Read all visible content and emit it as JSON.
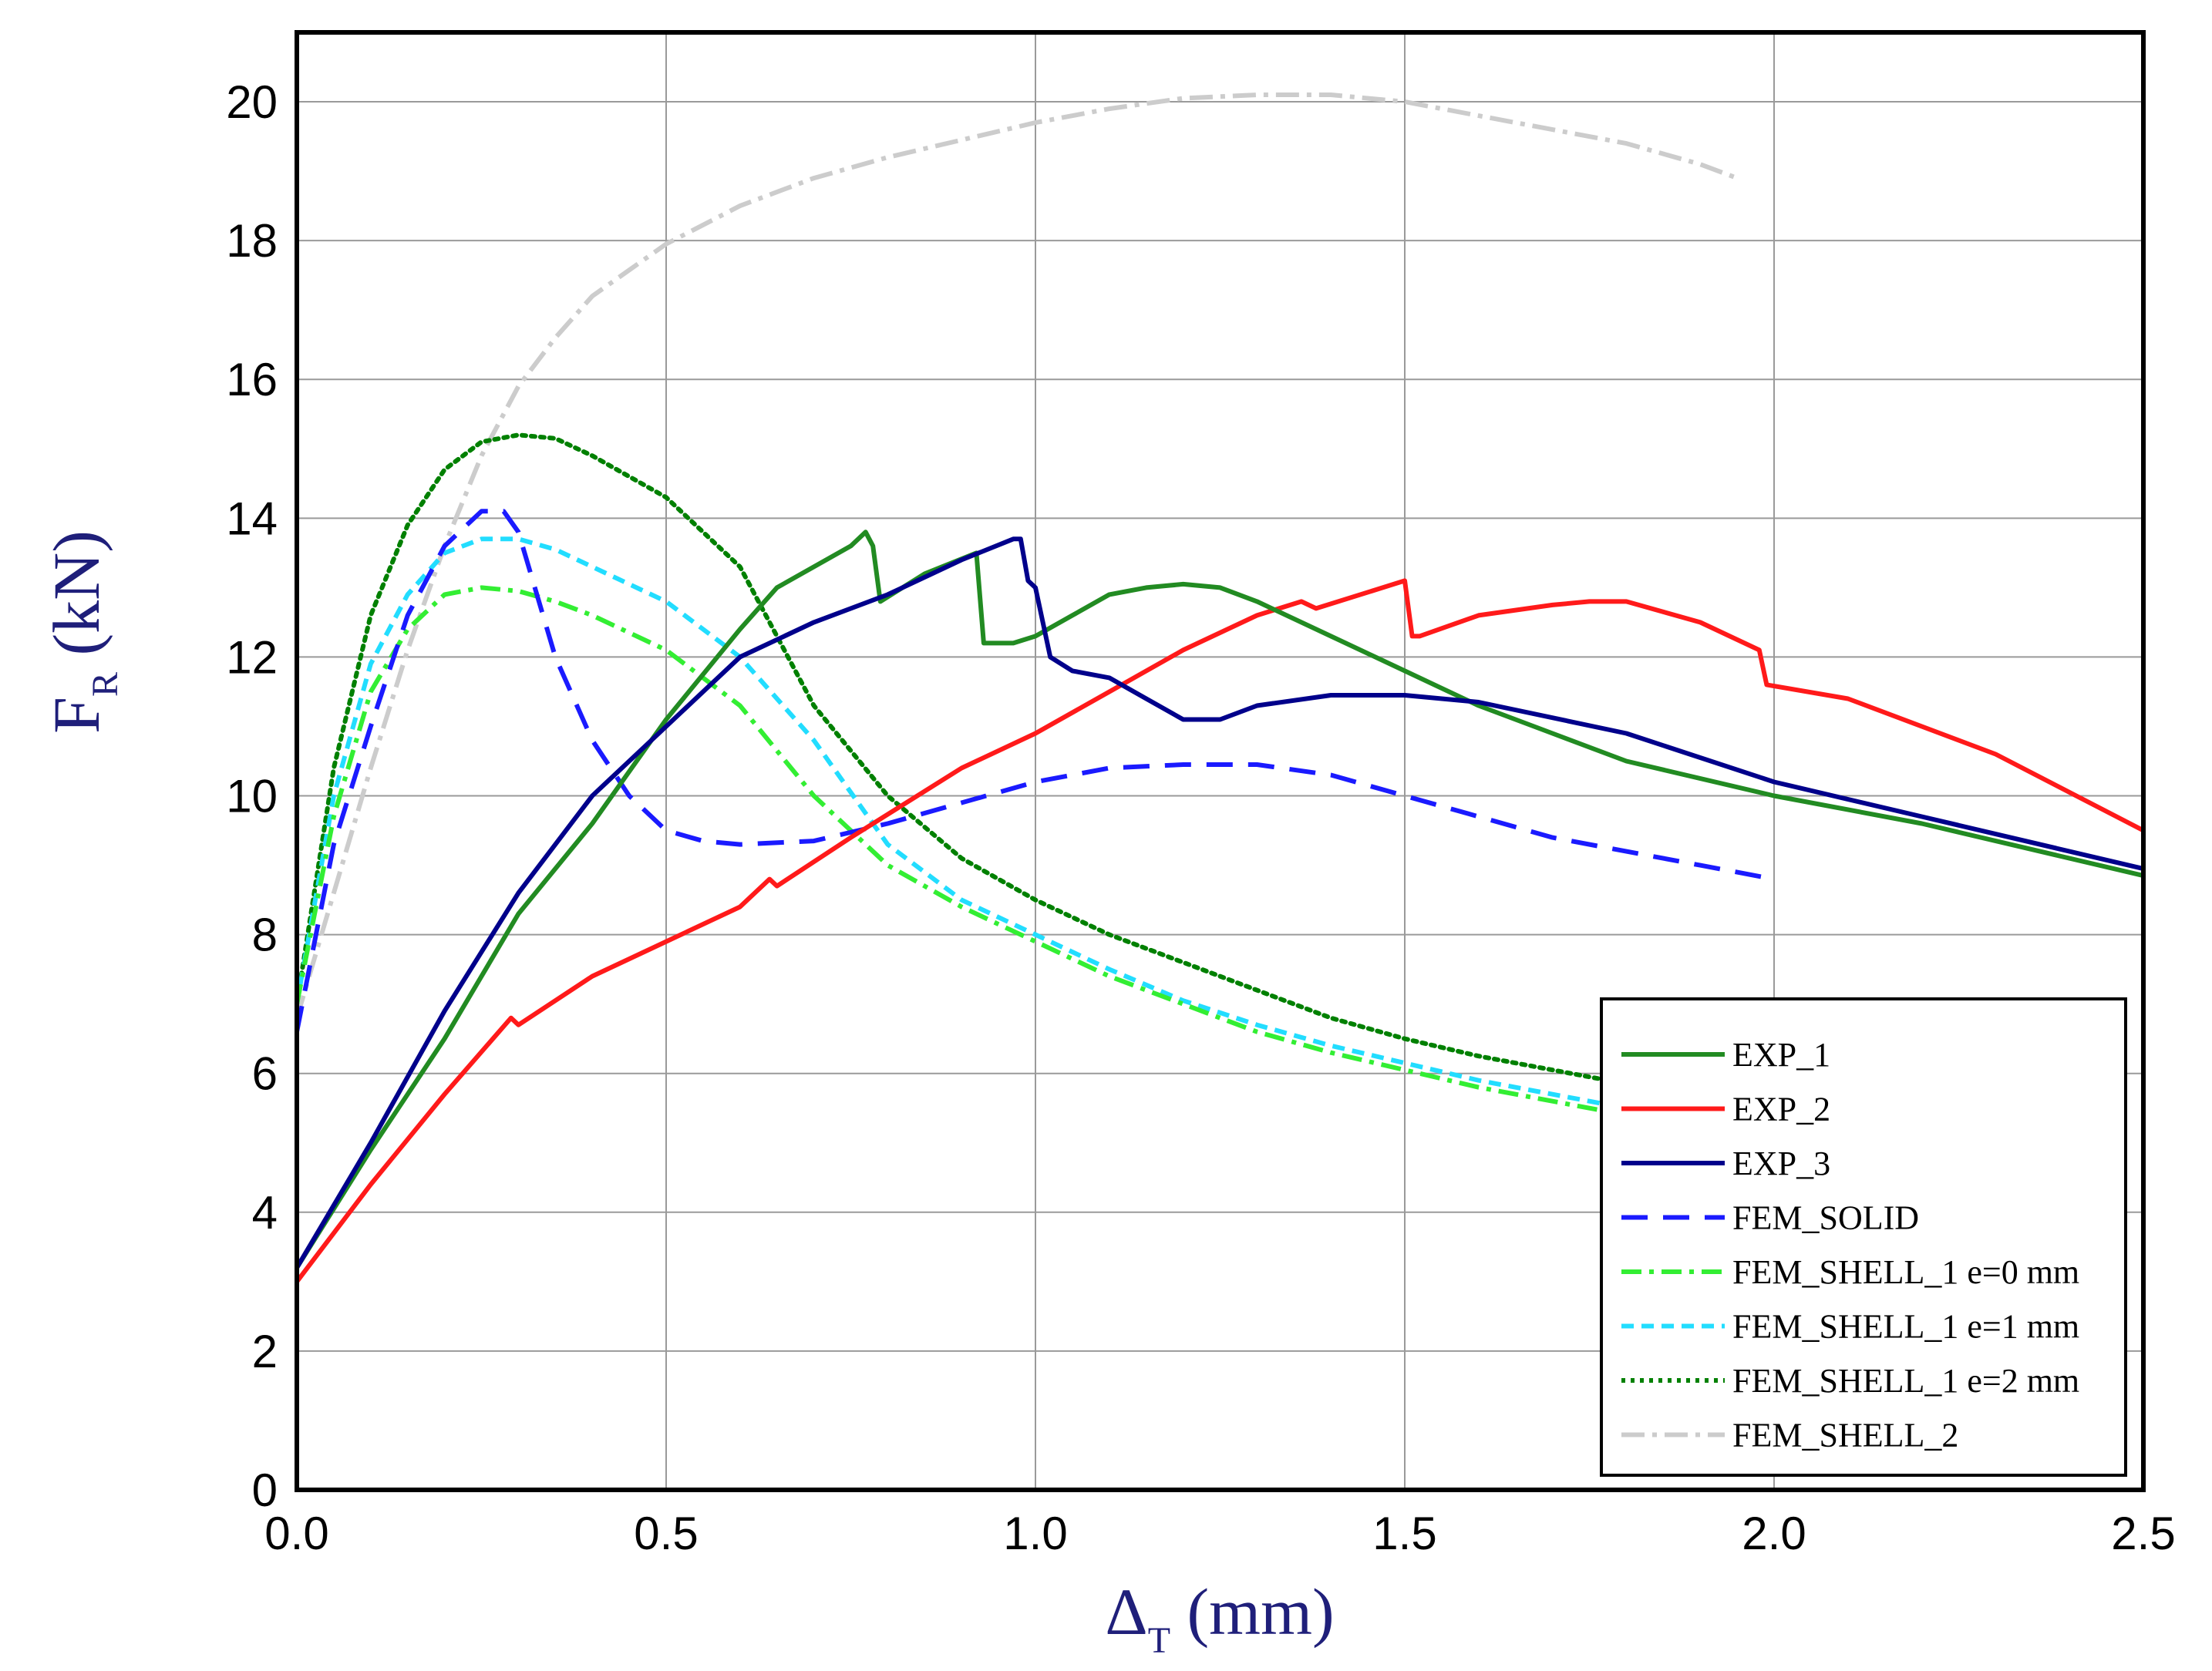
{
  "chart_data": {
    "type": "line",
    "xlabel": {
      "symbol": "Δ",
      "subscript": "T",
      "unit": " (mm)"
    },
    "ylabel": {
      "symbol": "F",
      "subscript": "R",
      "unit": " (kN)"
    },
    "xlim": [
      0,
      2.5
    ],
    "ylim": [
      0,
      21
    ],
    "xticks": [
      0,
      0.5,
      1.0,
      1.5,
      2.0,
      2.5
    ],
    "xtick_labels": [
      "0.0",
      "0.5",
      "1.0",
      "1.5",
      "2.0",
      "2.5"
    ],
    "yticks": [
      0,
      2,
      4,
      6,
      8,
      10,
      12,
      14,
      16,
      18,
      20
    ],
    "ytick_labels": [
      "0",
      "2",
      "4",
      "6",
      "8",
      "10",
      "12",
      "14",
      "16",
      "18",
      "20"
    ],
    "grid": true,
    "legend_position": "bottom-right",
    "series": [
      {
        "name": "EXP_1",
        "color": "#228b22",
        "dash": "solid",
        "x": [
          0,
          0.1,
          0.2,
          0.3,
          0.4,
          0.5,
          0.6,
          0.65,
          0.7,
          0.75,
          0.77,
          0.78,
          0.79,
          0.85,
          0.92,
          0.93,
          0.97,
          1.0,
          1.05,
          1.1,
          1.15,
          1.2,
          1.25,
          1.3,
          1.4,
          1.5,
          1.6,
          1.7,
          1.8,
          2.0,
          2.2,
          2.5
        ],
        "y": [
          3.2,
          4.9,
          6.5,
          8.3,
          9.6,
          11.1,
          12.4,
          13.0,
          13.3,
          13.6,
          13.8,
          13.6,
          12.8,
          13.2,
          13.5,
          12.2,
          12.2,
          12.3,
          12.6,
          12.9,
          13.0,
          13.05,
          13.0,
          12.8,
          12.3,
          11.8,
          11.3,
          10.9,
          10.5,
          10.0,
          9.6,
          8.85
        ]
      },
      {
        "name": "EXP_2",
        "color": "#ff1a1a",
        "dash": "solid",
        "x": [
          0,
          0.1,
          0.2,
          0.29,
          0.3,
          0.4,
          0.5,
          0.6,
          0.64,
          0.65,
          0.75,
          0.9,
          1.0,
          1.1,
          1.2,
          1.3,
          1.36,
          1.38,
          1.5,
          1.51,
          1.52,
          1.6,
          1.7,
          1.75,
          1.8,
          1.9,
          1.98,
          1.99,
          2.1,
          2.3,
          2.5
        ],
        "y": [
          3.0,
          4.4,
          5.7,
          6.8,
          6.7,
          7.4,
          7.9,
          8.4,
          8.8,
          8.7,
          9.4,
          10.4,
          10.9,
          11.5,
          12.1,
          12.6,
          12.8,
          12.7,
          13.1,
          12.3,
          12.3,
          12.6,
          12.75,
          12.8,
          12.8,
          12.5,
          12.1,
          11.6,
          11.4,
          10.6,
          9.5
        ]
      },
      {
        "name": "EXP_3",
        "color": "#00008b",
        "dash": "solid",
        "x": [
          0,
          0.1,
          0.2,
          0.3,
          0.4,
          0.5,
          0.6,
          0.7,
          0.8,
          0.9,
          0.97,
          0.98,
          0.99,
          1.0,
          1.02,
          1.05,
          1.1,
          1.15,
          1.2,
          1.25,
          1.3,
          1.4,
          1.5,
          1.6,
          1.8,
          2.0,
          2.2,
          2.5
        ],
        "y": [
          3.2,
          5.0,
          6.9,
          8.6,
          10.0,
          11.0,
          12.0,
          12.5,
          12.9,
          13.4,
          13.7,
          13.7,
          13.1,
          13.0,
          12.0,
          11.8,
          11.7,
          11.4,
          11.1,
          11.1,
          11.3,
          11.45,
          11.45,
          11.35,
          10.9,
          10.2,
          9.7,
          8.95
        ]
      },
      {
        "name": "FEM_SOLID",
        "color": "#1a1aff",
        "dash": "dash",
        "x": [
          0,
          0.05,
          0.1,
          0.15,
          0.2,
          0.25,
          0.28,
          0.3,
          0.35,
          0.4,
          0.45,
          0.5,
          0.55,
          0.6,
          0.7,
          0.8,
          0.9,
          1.0,
          1.1,
          1.2,
          1.3,
          1.4,
          1.5,
          1.6,
          1.7,
          1.8,
          1.9,
          2.0
        ],
        "y": [
          6.6,
          9.3,
          11.0,
          12.6,
          13.6,
          14.1,
          14.1,
          13.8,
          12.0,
          10.8,
          10.0,
          9.5,
          9.35,
          9.3,
          9.35,
          9.6,
          9.9,
          10.2,
          10.4,
          10.45,
          10.45,
          10.3,
          10.0,
          9.7,
          9.4,
          9.2,
          9.0,
          8.8
        ]
      },
      {
        "name": "FEM_SHELL_1 e=0 mm",
        "color": "#33ee33",
        "dash": "dashdot",
        "x": [
          0,
          0.05,
          0.1,
          0.15,
          0.2,
          0.25,
          0.3,
          0.35,
          0.4,
          0.5,
          0.6,
          0.7,
          0.8,
          0.9,
          1.0,
          1.1,
          1.2,
          1.3,
          1.4,
          1.5,
          1.6,
          1.7,
          1.8
        ],
        "y": [
          7.0,
          9.7,
          11.5,
          12.4,
          12.9,
          13.0,
          12.95,
          12.8,
          12.6,
          12.1,
          11.3,
          10.0,
          9.0,
          8.4,
          7.9,
          7.4,
          7.0,
          6.6,
          6.3,
          6.05,
          5.8,
          5.6,
          5.4
        ]
      },
      {
        "name": "FEM_SHELL_1 e=1 mm",
        "color": "#22ddff",
        "dash": "dash-small",
        "x": [
          0,
          0.05,
          0.1,
          0.15,
          0.2,
          0.25,
          0.3,
          0.35,
          0.4,
          0.5,
          0.6,
          0.7,
          0.8,
          0.9,
          1.0,
          1.1,
          1.2,
          1.3,
          1.4,
          1.5,
          1.6,
          1.7,
          1.8
        ],
        "y": [
          7.0,
          10.0,
          11.9,
          12.9,
          13.5,
          13.7,
          13.7,
          13.55,
          13.3,
          12.8,
          12.0,
          10.8,
          9.3,
          8.5,
          8.0,
          7.5,
          7.05,
          6.7,
          6.4,
          6.15,
          5.9,
          5.7,
          5.5
        ]
      },
      {
        "name": "FEM_SHELL_1 e=2 mm",
        "color": "#008000",
        "dash": "dotted",
        "x": [
          0,
          0.05,
          0.1,
          0.15,
          0.2,
          0.25,
          0.3,
          0.35,
          0.4,
          0.5,
          0.6,
          0.65,
          0.7,
          0.8,
          0.9,
          1.0,
          1.1,
          1.2,
          1.3,
          1.4,
          1.5,
          1.6,
          1.7,
          1.8
        ],
        "y": [
          7.0,
          10.4,
          12.6,
          13.9,
          14.7,
          15.1,
          15.2,
          15.15,
          14.9,
          14.3,
          13.3,
          12.3,
          11.3,
          10.0,
          9.1,
          8.5,
          8.0,
          7.6,
          7.2,
          6.8,
          6.5,
          6.25,
          6.05,
          5.85
        ]
      },
      {
        "name": "FEM_SHELL_2",
        "color": "#cccccc",
        "dash": "dashdot-long",
        "x": [
          0,
          0.05,
          0.1,
          0.15,
          0.2,
          0.25,
          0.3,
          0.35,
          0.4,
          0.5,
          0.6,
          0.7,
          0.8,
          0.9,
          1.0,
          1.1,
          1.2,
          1.3,
          1.4,
          1.5,
          1.6,
          1.7,
          1.8,
          1.9,
          1.95
        ],
        "y": [
          6.8,
          8.6,
          10.4,
          12.1,
          13.6,
          14.9,
          15.9,
          16.6,
          17.2,
          17.95,
          18.5,
          18.9,
          19.2,
          19.45,
          19.7,
          19.9,
          20.05,
          20.1,
          20.1,
          20.0,
          19.8,
          19.6,
          19.4,
          19.1,
          18.9
        ]
      }
    ]
  }
}
